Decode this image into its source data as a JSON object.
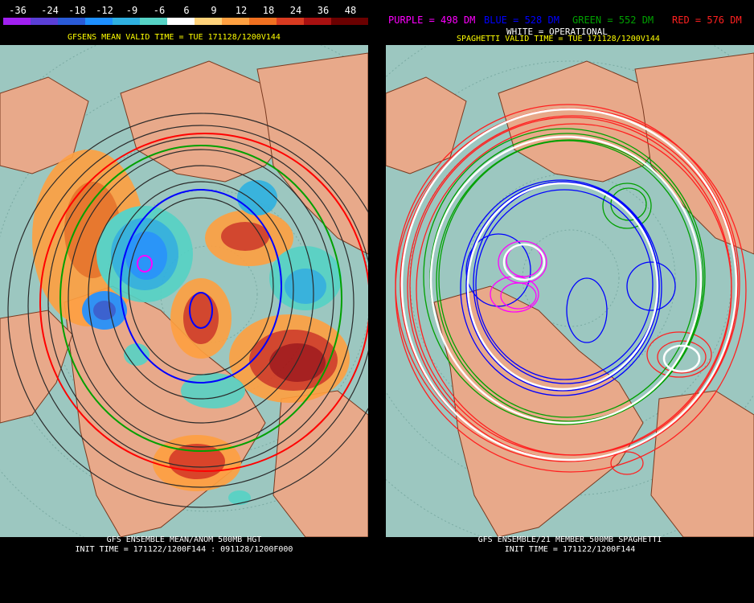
{
  "left_panel": {
    "color_scale": {
      "labels": [
        "-36",
        "-24",
        "-18",
        "-12",
        "-9",
        "-6",
        "6",
        "9",
        "12",
        "18",
        "24",
        "36",
        "48"
      ],
      "colors": [
        "#a020f0",
        "#5a3fd6",
        "#2a5bd7",
        "#1e90ff",
        "#2fb0e0",
        "#56d3c5",
        "#ffffff",
        "#ffd27a",
        "#ffa040",
        "#f07020",
        "#d83a20",
        "#a81010",
        "#6a0000"
      ]
    },
    "title": "GFSENS MEAN VALID TIME = TUE 171128/1200V144",
    "footer_line1": "GFS ENSEMBLE MEAN/ANOM 500MB HGT",
    "footer_line2": "INIT TIME = 171122/1200F144 : 091128/1200F000"
  },
  "right_panel": {
    "legend": [
      {
        "text": "PURPLE = 498 DM",
        "color": "#ff00ff"
      },
      {
        "text": "BLUE = 528 DM",
        "color": "#0000ff"
      },
      {
        "text": "GREEN = 552 DM",
        "color": "#00a000"
      },
      {
        "text": "RED = 576 DM",
        "color": "#ff2020"
      }
    ],
    "operational_note": "WHITE = OPERATIONAL",
    "title": "SPAGHETTI VALID TIME = TUE 171128/1200V144",
    "footer_line1": "GFS ENSEMBLE/21 MEMBER 500MB SPAGHETTI",
    "footer_line2": "INIT TIME = 171122/1200F144"
  },
  "colors": {
    "ocean": "#9cc7c0",
    "land": "#e8a98a",
    "coast": "#7a3a20",
    "background": "#000000"
  }
}
